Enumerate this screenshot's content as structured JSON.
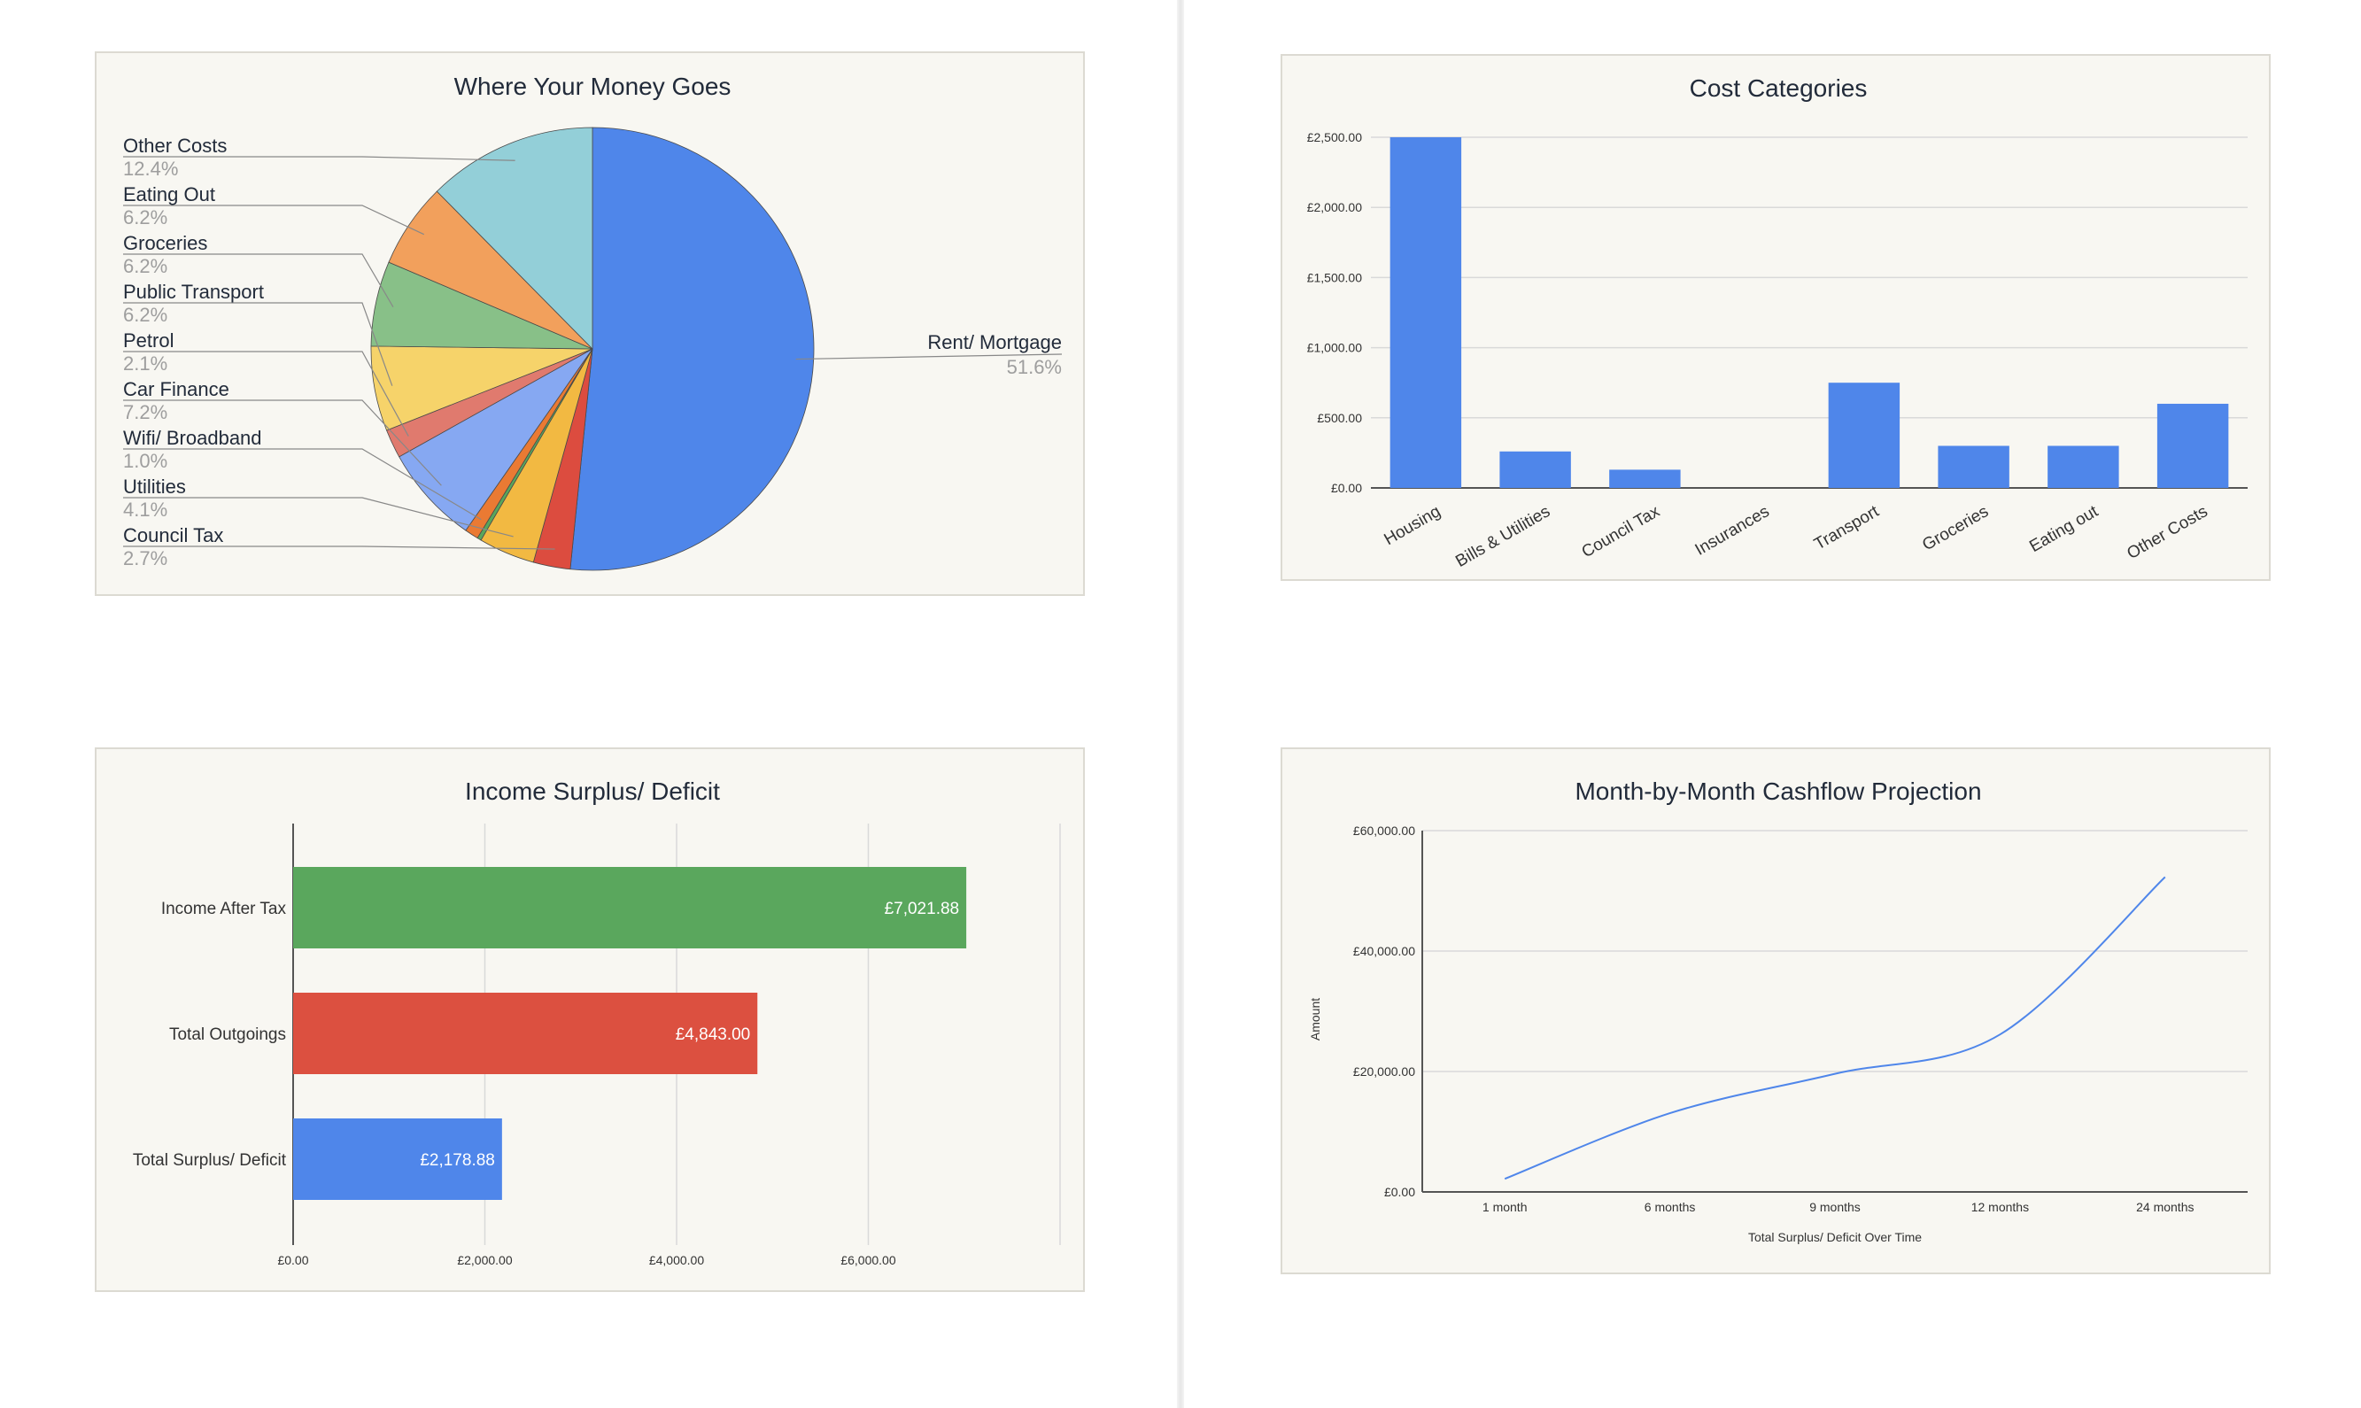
{
  "chart_data": [
    {
      "type": "pie",
      "title": "Where Your Money Goes",
      "slices": [
        {
          "label": "Rent/ Mortgage",
          "pct_label": "51.6%",
          "value": 51.6,
          "color": "#4f86ea"
        },
        {
          "label": "Council Tax",
          "pct_label": "2.7%",
          "value": 2.7,
          "color": "#dc4c3f"
        },
        {
          "label": "Utilities",
          "pct_label": "4.1%",
          "value": 4.1,
          "color": "#f2b942"
        },
        {
          "label": "",
          "pct_label": "",
          "value": 0.3,
          "color": "#58a65c"
        },
        {
          "label": "Wifi/ Broadband",
          "pct_label": "1.0%",
          "value": 1.0,
          "color": "#ea7a33"
        },
        {
          "label": "Car Finance",
          "pct_label": "7.2%",
          "value": 7.2,
          "color": "#86a8f2"
        },
        {
          "label": "Petrol",
          "pct_label": "2.1%",
          "value": 2.1,
          "color": "#e07a6e"
        },
        {
          "label": "Public Transport",
          "pct_label": "6.2%",
          "value": 6.2,
          "color": "#f6d36a"
        },
        {
          "label": "Groceries",
          "pct_label": "6.2%",
          "value": 6.2,
          "color": "#88c088"
        },
        {
          "label": "Eating Out",
          "pct_label": "6.2%",
          "value": 6.2,
          "color": "#f2a05c"
        },
        {
          "label": "Other Costs",
          "pct_label": "12.4%",
          "value": 12.4,
          "color": "#93cfd8"
        }
      ]
    },
    {
      "type": "bar",
      "title": "Cost Categories",
      "categories": [
        "Housing",
        "Bills & Utilities",
        "Council Tax",
        "Insurances",
        "Transport",
        "Groceries",
        "Eating out",
        "Other Costs"
      ],
      "values": [
        2500,
        260,
        130,
        0,
        750,
        300,
        300,
        600
      ],
      "ylim": [
        0,
        2500
      ],
      "yticks": [
        0,
        500,
        1000,
        1500,
        2000,
        2500
      ],
      "ytick_labels": [
        "£0.00",
        "£500.00",
        "£1,000.00",
        "£1,500.00",
        "£2,000.00",
        "£2,500.00"
      ],
      "color": "#4f86ea"
    },
    {
      "type": "bar",
      "orientation": "horizontal",
      "title": "Income Surplus/ Deficit",
      "categories": [
        "Income After Tax",
        "Total Outgoings",
        "Total Surplus/ Deficit"
      ],
      "values": [
        7021.88,
        4843.0,
        2178.88
      ],
      "value_labels": [
        "£7,021.88",
        "£4,843.00",
        "£2,178.88"
      ],
      "colors": [
        "#5aa75d",
        "#dc5040",
        "#4f86ea"
      ],
      "xlim": [
        0,
        8000
      ],
      "xticks": [
        0,
        2000,
        4000,
        6000
      ],
      "xtick_labels": [
        "£0.00",
        "£2,000.00",
        "£4,000.00",
        "£6,000.00"
      ]
    },
    {
      "type": "line",
      "title": "Month-by-Month Cashflow Projection",
      "x": [
        "1 month",
        "6 months",
        "9 months",
        "12 months",
        "24 months"
      ],
      "y": [
        2178.88,
        13073.28,
        19610.0,
        26146.56,
        52293.12
      ],
      "ylim": [
        0,
        60000
      ],
      "yticks": [
        0,
        20000,
        40000,
        60000
      ],
      "ytick_labels": [
        "£0.00",
        "£20,000.00",
        "£40,000.00",
        "£60,000.00"
      ],
      "xlabel": "Total Surplus/ Deficit Over Time",
      "ylabel": "Amount",
      "color": "#4f86ea"
    }
  ]
}
